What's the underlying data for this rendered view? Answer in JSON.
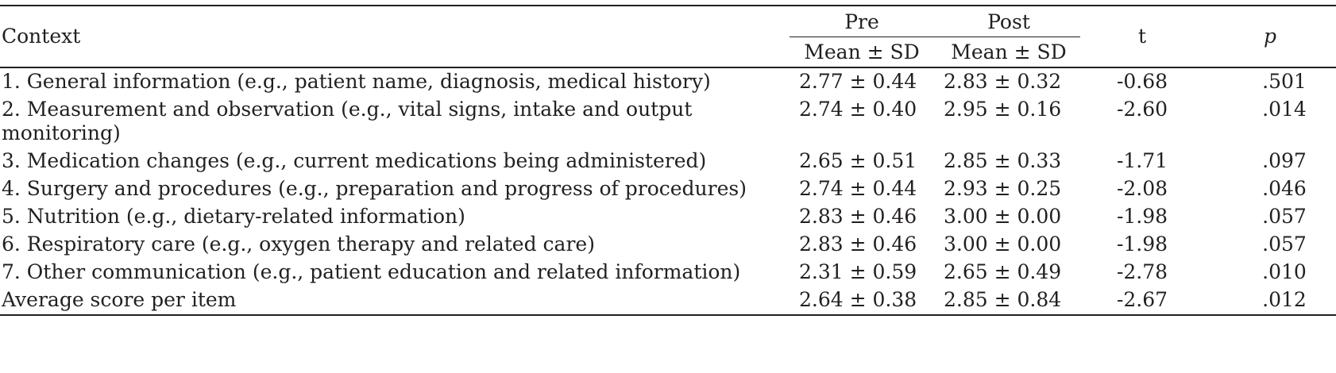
{
  "table": {
    "headers": {
      "context": "Context",
      "pre": "Pre",
      "post": "Post",
      "pre_sub": "Mean ± SD",
      "post_sub": "Mean ± SD",
      "t": "t",
      "p": "p"
    },
    "rows": [
      {
        "context": "1. General information (e.g., patient name, diagnosis, medical history)",
        "pre": "2.77 ± 0.44",
        "post": "2.83 ± 0.32",
        "t": "-0.68",
        "p": ".501"
      },
      {
        "context": "2. Measurement and observation (e.g., vital signs, intake and output monitoring)",
        "pre": "2.74 ± 0.40",
        "post": "2.95 ± 0.16",
        "t": "-2.60",
        "p": ".014"
      },
      {
        "context": "3. Medication changes (e.g., current medications being administered)",
        "pre": "2.65 ± 0.51",
        "post": "2.85 ± 0.33",
        "t": "-1.71",
        "p": ".097"
      },
      {
        "context": "4. Surgery and procedures (e.g., preparation and progress of procedures)",
        "pre": "2.74 ± 0.44",
        "post": "2.93 ± 0.25",
        "t": "-2.08",
        "p": ".046"
      },
      {
        "context": "5. Nutrition (e.g., dietary-related information)",
        "pre": "2.83 ± 0.46",
        "post": "3.00 ± 0.00",
        "t": "-1.98",
        "p": ".057"
      },
      {
        "context": "6. Respiratory care (e.g., oxygen therapy and related care)",
        "pre": "2.83 ± 0.46",
        "post": "3.00 ± 0.00",
        "t": "-1.98",
        "p": ".057"
      },
      {
        "context": "7. Other communication (e.g., patient education and related information)",
        "pre": "2.31 ± 0.59",
        "post": "2.65 ± 0.49",
        "t": "-2.78",
        "p": ".010"
      },
      {
        "context": "Average score per item",
        "pre": "2.64 ± 0.38",
        "post": "2.85 ± 0.84",
        "t": "-2.67",
        "p": ".012"
      }
    ]
  }
}
